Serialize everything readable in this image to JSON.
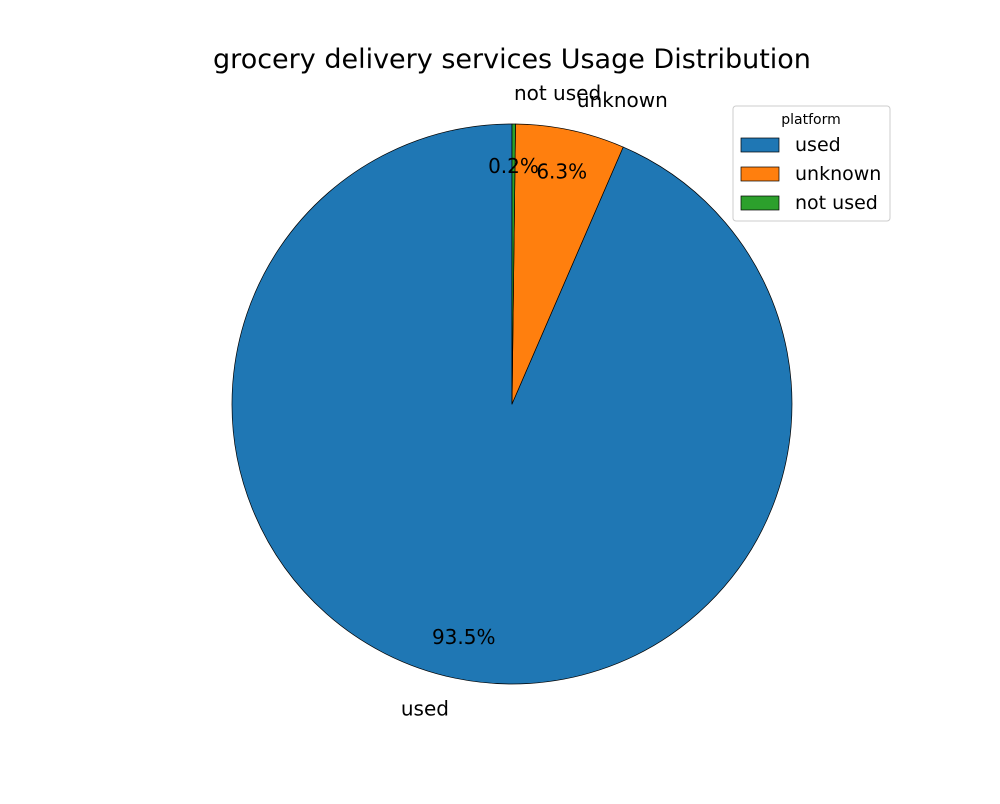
{
  "chart_data": {
    "type": "pie",
    "title": "grocery delivery services Usage Distribution",
    "categories": [
      "used",
      "unknown",
      "not used"
    ],
    "values": [
      93.5,
      6.3,
      0.2
    ],
    "value_labels": [
      "93.5%",
      "6.3%",
      "0.2%"
    ],
    "colors": [
      "#1f77b4",
      "#ff7f0e",
      "#2ca02c"
    ],
    "start_angle_deg": 90,
    "direction": "counterclockwise",
    "legend": {
      "title": "platform",
      "placement": "upper right",
      "entries": [
        "used",
        "unknown",
        "not used"
      ]
    }
  }
}
